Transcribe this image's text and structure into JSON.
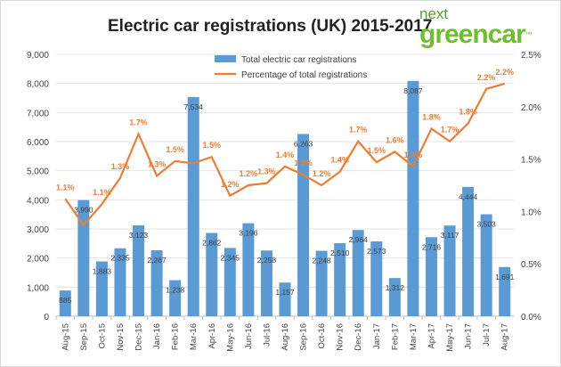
{
  "chart_data": {
    "type": "bar+line",
    "title": "Electric car registrations (UK) 2015-2017",
    "logo": {
      "top": "next",
      "bottom": "greencar",
      "mark": "™"
    },
    "categories": [
      "Aug-15",
      "Sep-15",
      "Oct-15",
      "Nov-15",
      "Dec-15",
      "Jan-16",
      "Feb-16",
      "Mar-16",
      "Apr-16",
      "May-16",
      "Jun-16",
      "Jul-16",
      "Aug-16",
      "Sep-16",
      "Oct-16",
      "Nov-16",
      "Dec-16",
      "Jan-17",
      "Feb-17",
      "Mar-17",
      "Apr-17",
      "May-17",
      "Jun-17",
      "Jul-17",
      "Aug-17"
    ],
    "series": [
      {
        "name": "Total electric car registrations",
        "type": "bar",
        "axis": "left",
        "color": "#5b9bd5",
        "values": [
          885,
          3990,
          1883,
          2335,
          3123,
          2267,
          1238,
          7534,
          2862,
          2345,
          3196,
          2258,
          1157,
          6263,
          2248,
          2510,
          2964,
          2573,
          1312,
          8087,
          2716,
          3117,
          4444,
          3503,
          1691
        ],
        "labels": [
          "885",
          "3,990",
          "1,883",
          "2,335",
          "3,123",
          "2,267",
          "1,238",
          "7,534",
          "2,862",
          "2,345",
          "3,196",
          "2,258",
          "1,157",
          "6,263",
          "2,248",
          "2,510",
          "2,964",
          "2,573",
          "1,312",
          "8,087",
          "2,716",
          "3,117",
          "4,444",
          "3,503",
          "1,691"
        ]
      },
      {
        "name": "Percentage of total registrations",
        "type": "line",
        "axis": "right",
        "color": "#ed7d31",
        "values": [
          1.12,
          0.87,
          1.07,
          1.32,
          1.74,
          1.34,
          1.48,
          1.46,
          1.52,
          1.15,
          1.25,
          1.27,
          1.43,
          1.35,
          1.25,
          1.38,
          1.67,
          1.47,
          1.57,
          1.43,
          1.79,
          1.67,
          1.84,
          2.17,
          2.22
        ],
        "labels": [
          "1.1%",
          null,
          "1.1%",
          "1.3%",
          "1.7%",
          "1.3%",
          "1.5%",
          null,
          "1.5%",
          "1.2%",
          "1.2%",
          "1.3%",
          "1.4%",
          "1.3%",
          "1.2%",
          "1.4%",
          "1.7%",
          "1.5%",
          "1.6%",
          "1.4%",
          "1.8%",
          "1.7%",
          "1.8%",
          "2.2%",
          "2.2%"
        ]
      }
    ],
    "y_left": {
      "min": 0,
      "max": 9000,
      "step": 1000,
      "ticks": [
        "0",
        "1,000",
        "2,000",
        "3,000",
        "4,000",
        "5,000",
        "6,000",
        "7,000",
        "8,000",
        "9,000"
      ]
    },
    "y_right": {
      "min": 0,
      "max": 2.5,
      "step": 0.5,
      "ticks": [
        "0.0%",
        "0.5%",
        "1.0%",
        "1.5%",
        "2.0%",
        "2.5%"
      ]
    },
    "grid": true,
    "legend": "top-center"
  }
}
